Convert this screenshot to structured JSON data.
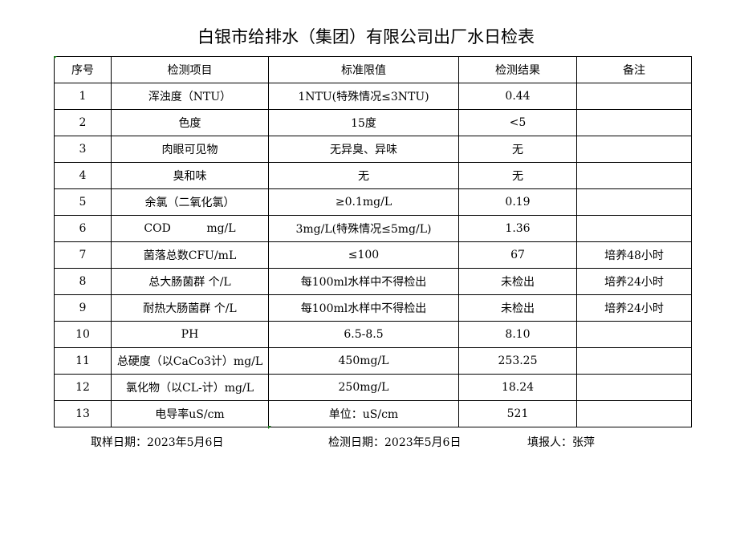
{
  "title": "白银市给排水（集团）有限公司出厂水日检表",
  "headers": [
    "序号",
    "检测项目",
    "标准限值",
    "检测结果",
    "备注"
  ],
  "rows": [
    [
      "1",
      "浑浊度（NTU）",
      "1NTU(特殊情况≤3NTU)",
      "0.44",
      ""
    ],
    [
      "2",
      "色度",
      "15度",
      "<5",
      ""
    ],
    [
      "3",
      "肉眼可见物",
      "无异臭、异味",
      "无",
      ""
    ],
    [
      "4",
      "臭和味",
      "无",
      "无",
      ""
    ],
    [
      "5",
      "余氯（二氧化氯）",
      "≥0.1mg/L",
      "0.19",
      ""
    ],
    [
      "6",
      "COD          mg/L",
      "3mg/L(特殊情况≤5mg/L)",
      "1.36",
      ""
    ],
    [
      "7",
      "菌落总数CFU/mL",
      "≤100",
      "67",
      "培养48小时"
    ],
    [
      "8",
      "总大肠菌群 个/L",
      "每100ml水样中不得检出",
      "未检出",
      "培养24小时"
    ],
    [
      "9",
      "耐热大肠菌群 个/L",
      "每100ml水样中不得检出",
      "未检出",
      "培养24小时"
    ],
    [
      "10",
      "PH",
      "6.5-8.5",
      "8.10",
      ""
    ],
    [
      "11",
      "总硬度（以CaCo3计）mg/L",
      "450mg/L",
      "253.25",
      ""
    ],
    [
      "12",
      "氯化物（以CL-计）mg/L",
      "250mg/L",
      "18.24",
      ""
    ],
    [
      "13",
      "电导率uS/cm",
      "单位：uS/cm",
      "521",
      ""
    ]
  ],
  "footer": {
    "sampling_date": "取样日期：2023年5月6日",
    "test_date": "检测日期：2023年5月6日",
    "reporter": "填报人：张萍"
  }
}
